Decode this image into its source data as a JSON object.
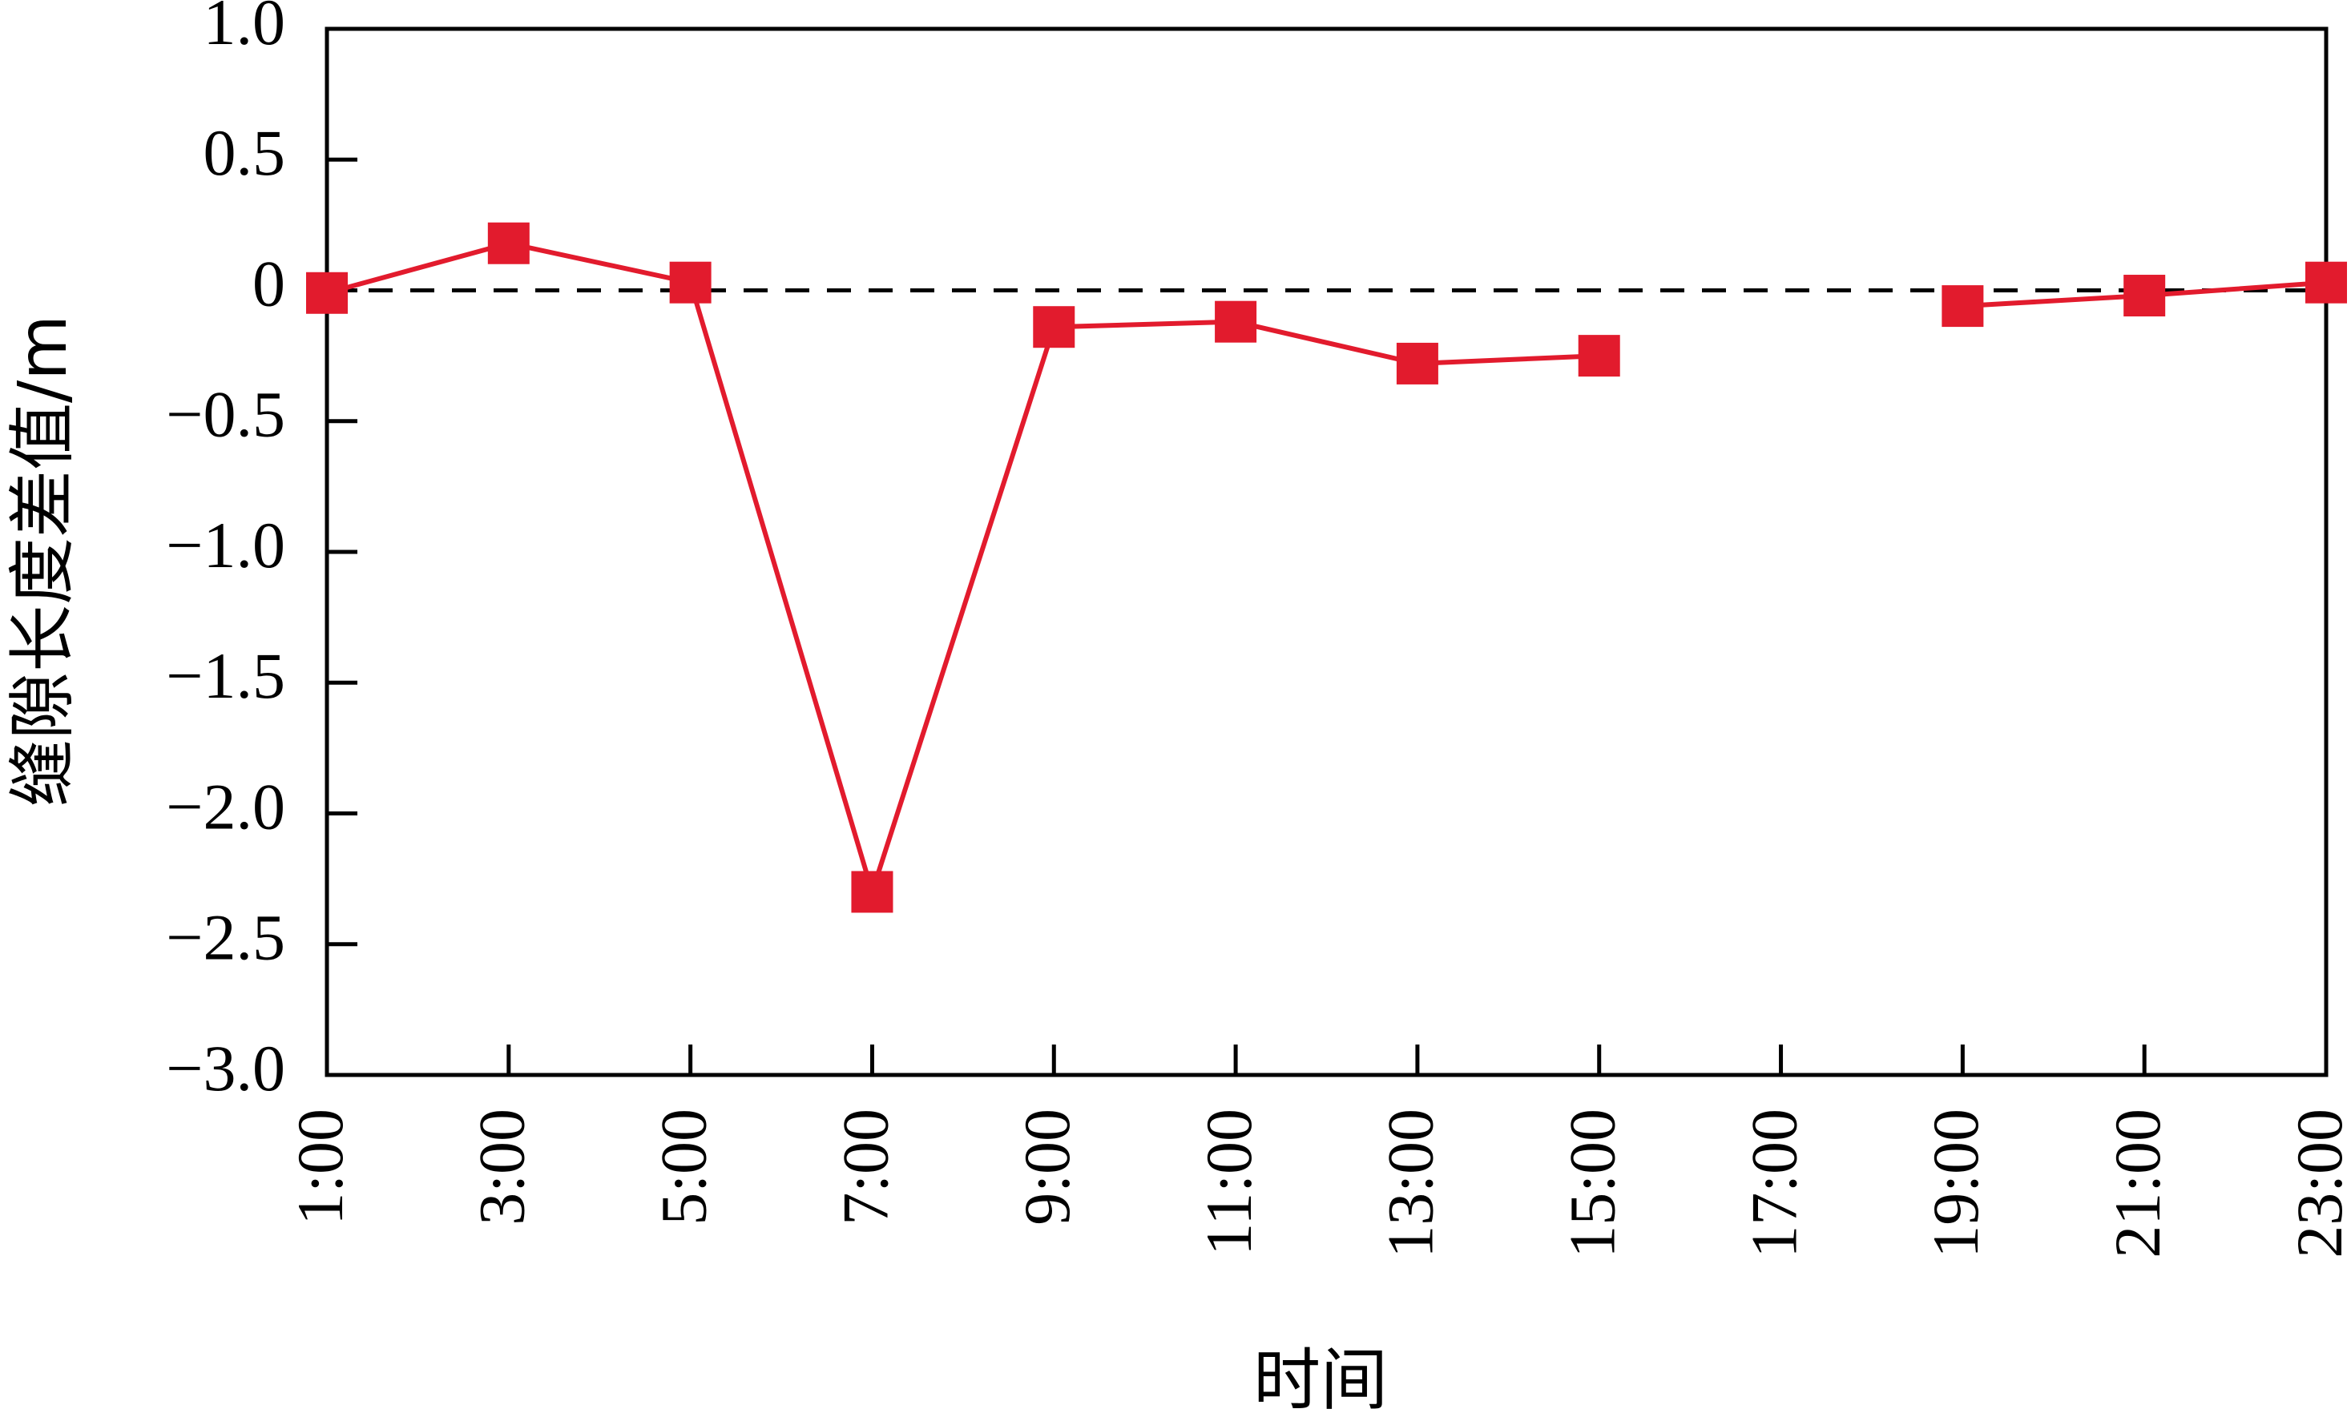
{
  "chart_data": {
    "type": "line",
    "title": "",
    "xlabel": "时间",
    "ylabel": "缝隙长度差值/m",
    "categories": [
      "1:00",
      "3:00",
      "5:00",
      "7:00",
      "9:00",
      "11:00",
      "13:00",
      "15:00",
      "17:00",
      "19:00",
      "21:00",
      "23:00"
    ],
    "series": [
      {
        "values": [
          -0.01,
          0.18,
          0.03,
          -2.3,
          -0.14,
          -0.12,
          -0.28,
          -0.25,
          null,
          -0.06,
          -0.02,
          0.03
        ]
      }
    ],
    "yticks": [
      "1.0",
      "0.5",
      "0",
      "−0.5",
      "−1.0",
      "−1.5",
      "−2.0",
      "−2.5",
      "−3.0"
    ],
    "ylim": [
      -3.0,
      1.0
    ],
    "reference_line": 0,
    "grid": false,
    "legend": "none",
    "colors": {
      "series": "#e21b2d",
      "reference": "#000000",
      "axis": "#000000"
    }
  }
}
